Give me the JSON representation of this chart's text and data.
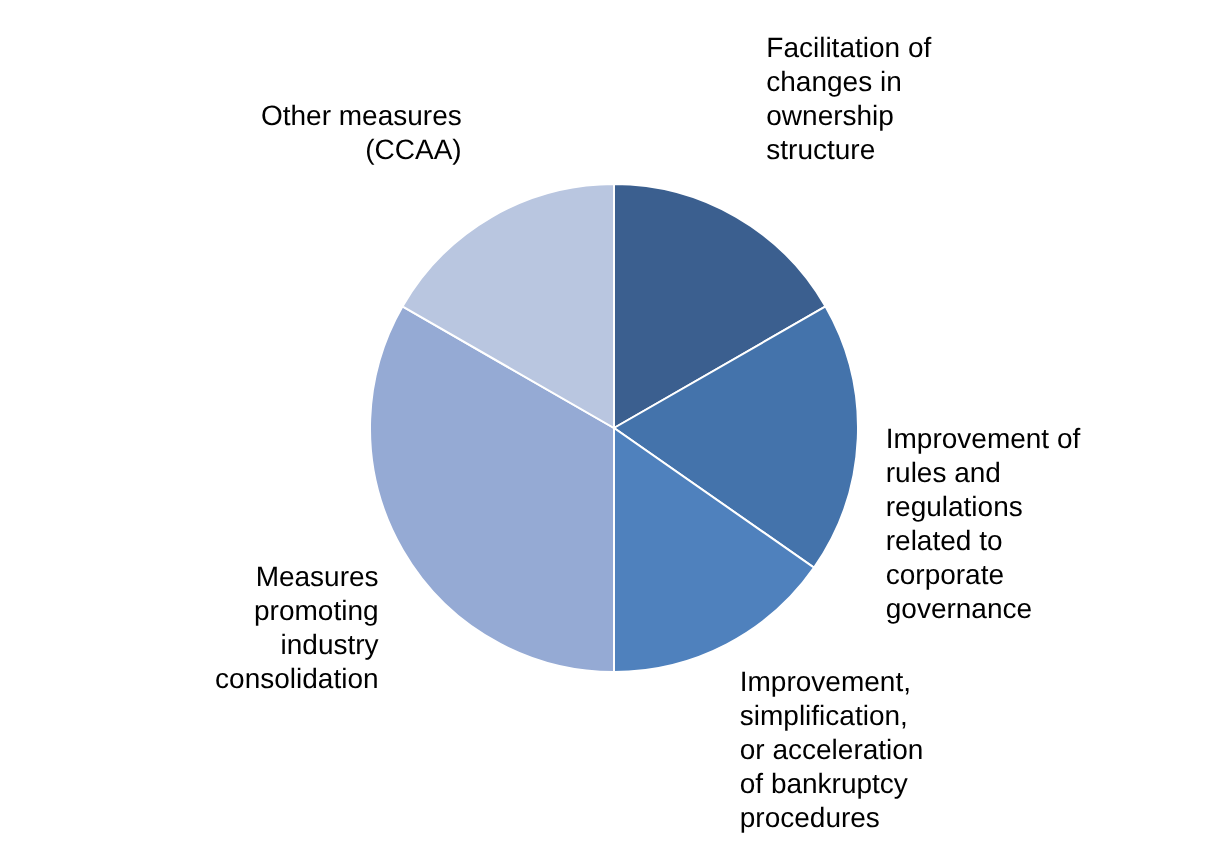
{
  "chart_data": {
    "type": "pie",
    "categories": [
      "Facilitation of changes in ownership structure",
      "Improvement of rules and regulations related to corporate governance",
      "Improvement, simplification, or acceleration of bankruptcy procedures",
      "Measures promoting industry consolidation",
      "Other measures (CCAA)"
    ],
    "values": [
      16.7,
      18,
      15.3,
      33.3,
      16.7
    ],
    "colors": [
      "#3b5f8f",
      "#4473ab",
      "#4f81bd",
      "#95aad4",
      "#b9c6e0"
    ]
  }
}
